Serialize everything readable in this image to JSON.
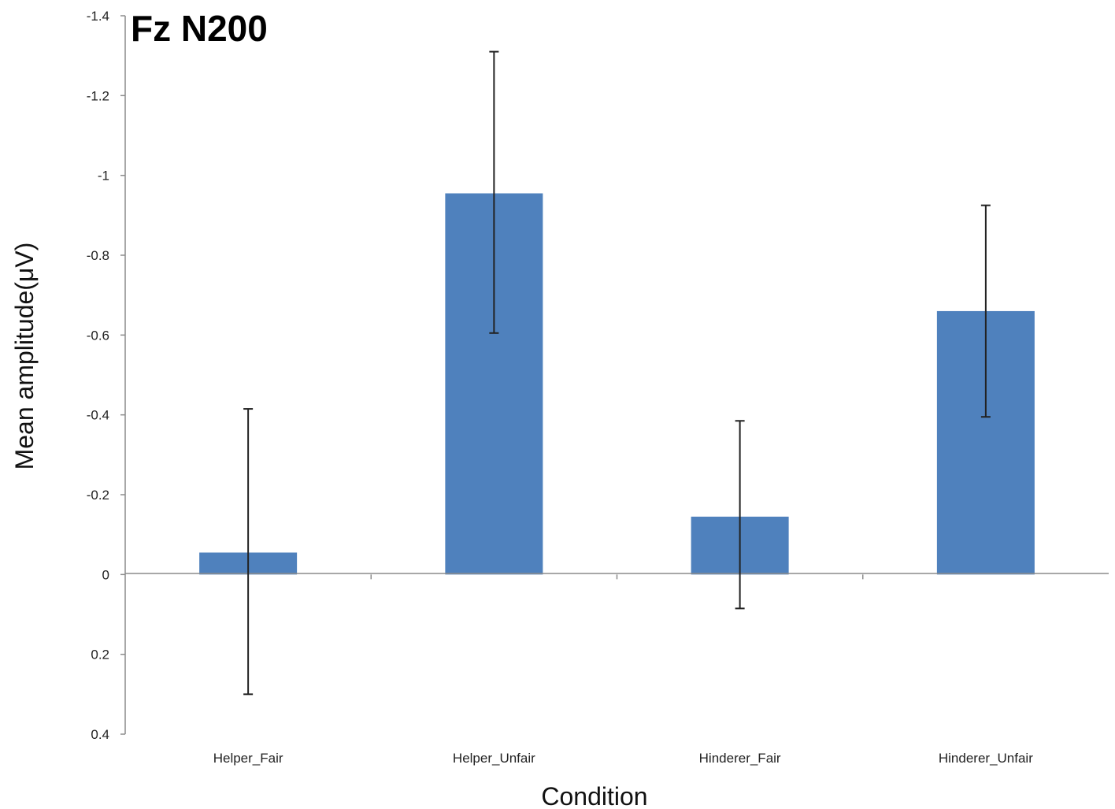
{
  "chart_data": {
    "type": "bar",
    "title": "Fz N200",
    "xlabel": "Condition",
    "ylabel": "Mean amplitude(μV)",
    "categories": [
      "Helper_Fair",
      "Helper_Unfair",
      "Hinderer_Fair",
      "Hinderer_Unfair"
    ],
    "values": [
      -0.055,
      -0.955,
      -0.145,
      -0.66
    ],
    "error_upper": [
      -0.415,
      -1.31,
      -0.385,
      -0.925
    ],
    "error_lower": [
      0.3,
      -0.605,
      0.085,
      -0.395
    ],
    "yticks": [
      -1.4,
      -1.2,
      -1,
      -0.8,
      -0.6,
      -0.4,
      -0.2,
      0,
      0.2,
      0.4
    ],
    "ytick_labels": [
      "-1.4",
      "-1.2",
      "-1",
      "-0.8",
      "-0.6",
      "-0.4",
      "-0.2",
      "0",
      "0.2",
      "0.4"
    ],
    "ylim": [
      -1.4,
      0.4
    ],
    "y_inverted": true,
    "bar_color": "#4f81bd",
    "grid": false
  }
}
